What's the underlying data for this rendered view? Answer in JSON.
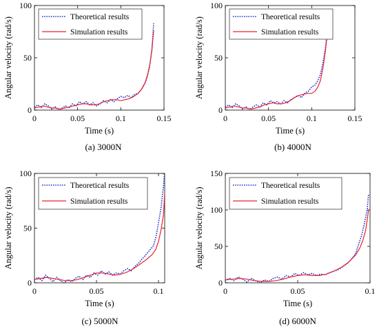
{
  "chart_data": [
    {
      "type": "line",
      "caption": "(a) 3000N",
      "xlabel": "Time (s)",
      "ylabel": "Angular velocity (rad/s)",
      "xlim": [
        0,
        0.15
      ],
      "ylim": [
        0,
        100
      ],
      "xticks": [
        {
          "v": 0,
          "label": "0"
        },
        {
          "v": 0.05,
          "label": "0.05"
        },
        {
          "v": 0.1,
          "label": "0.1"
        },
        {
          "v": 0.15,
          "label": "0.15"
        }
      ],
      "yticks": [
        {
          "v": 0,
          "label": "0"
        },
        {
          "v": 50,
          "label": "50"
        },
        {
          "v": 100,
          "label": "100"
        }
      ],
      "legend_position": "top-left",
      "series": [
        {
          "name": "Theoretical results",
          "color": "#1f2fd0",
          "style": "dotted",
          "x": [
            0,
            0.004,
            0.008,
            0.012,
            0.016,
            0.02,
            0.024,
            0.028,
            0.032,
            0.036,
            0.04,
            0.044,
            0.048,
            0.052,
            0.056,
            0.06,
            0.064,
            0.068,
            0.072,
            0.076,
            0.08,
            0.084,
            0.088,
            0.092,
            0.096,
            0.1,
            0.104,
            0.108,
            0.112,
            0.116,
            0.12,
            0.124,
            0.127,
            0.13,
            0.133,
            0.136,
            0.138
          ],
          "y": [
            3,
            5,
            2,
            6,
            4,
            1,
            3,
            0,
            2,
            4,
            2,
            6,
            4,
            8,
            6,
            8,
            5,
            7,
            4,
            6,
            9,
            7,
            10,
            8,
            11,
            13,
            12,
            14,
            12,
            15,
            16,
            20,
            24,
            30,
            40,
            58,
            83
          ]
        },
        {
          "name": "Simulation results",
          "color": "#e8222a",
          "style": "solid",
          "x": [
            0,
            0.005,
            0.01,
            0.015,
            0.02,
            0.025,
            0.03,
            0.035,
            0.04,
            0.045,
            0.05,
            0.055,
            0.06,
            0.065,
            0.07,
            0.075,
            0.08,
            0.085,
            0.09,
            0.095,
            0.1,
            0.105,
            0.11,
            0.115,
            0.12,
            0.124,
            0.128,
            0.131,
            0.134,
            0.136,
            0.138
          ],
          "y": [
            2,
            3,
            4,
            3,
            2,
            2,
            1,
            2,
            3,
            4,
            5,
            6,
            6,
            5,
            5,
            6,
            8,
            9,
            10,
            10,
            9,
            10,
            11,
            13,
            16,
            20,
            26,
            34,
            45,
            58,
            76
          ]
        }
      ]
    },
    {
      "type": "line",
      "caption": "(b) 4000N",
      "xlabel": "Time (s)",
      "ylabel": "Angular velocity (rad/s)",
      "xlim": [
        0,
        0.15
      ],
      "ylim": [
        0,
        100
      ],
      "xticks": [
        {
          "v": 0,
          "label": "0"
        },
        {
          "v": 0.05,
          "label": "0.05"
        },
        {
          "v": 0.1,
          "label": "0.1"
        },
        {
          "v": 0.15,
          "label": "0.15"
        }
      ],
      "yticks": [
        {
          "v": 0,
          "label": "0"
        },
        {
          "v": 50,
          "label": "50"
        },
        {
          "v": 100,
          "label": "100"
        }
      ],
      "legend_position": "top-left",
      "series": [
        {
          "name": "Theoretical results",
          "color": "#1f2fd0",
          "style": "dotted",
          "x": [
            0,
            0.004,
            0.008,
            0.012,
            0.016,
            0.02,
            0.024,
            0.028,
            0.032,
            0.036,
            0.04,
            0.044,
            0.048,
            0.052,
            0.056,
            0.06,
            0.064,
            0.068,
            0.072,
            0.076,
            0.08,
            0.084,
            0.088,
            0.092,
            0.096,
            0.1,
            0.104,
            0.107,
            0.11,
            0.113,
            0.116,
            0.118,
            0.12
          ],
          "y": [
            3,
            5,
            2,
            6,
            4,
            1,
            3,
            0,
            3,
            5,
            3,
            7,
            5,
            9,
            7,
            8,
            6,
            9,
            7,
            10,
            12,
            14,
            12,
            16,
            18,
            22,
            24,
            28,
            34,
            45,
            60,
            75,
            88
          ]
        },
        {
          "name": "Simulation results",
          "color": "#e8222a",
          "style": "solid",
          "x": [
            0,
            0.005,
            0.01,
            0.015,
            0.02,
            0.025,
            0.03,
            0.035,
            0.04,
            0.045,
            0.05,
            0.055,
            0.06,
            0.065,
            0.07,
            0.075,
            0.08,
            0.085,
            0.09,
            0.095,
            0.1,
            0.104,
            0.107,
            0.11,
            0.113,
            0.116,
            0.118,
            0.12
          ],
          "y": [
            2,
            3,
            4,
            3,
            2,
            2,
            1,
            2,
            3,
            5,
            6,
            7,
            6,
            6,
            7,
            9,
            12,
            14,
            15,
            16,
            16,
            18,
            22,
            28,
            40,
            57,
            73,
            90
          ]
        }
      ]
    },
    {
      "type": "line",
      "caption": "(c) 5000N",
      "xlabel": "Time (s)",
      "ylabel": "Angular velocity (rad/s)",
      "xlim": [
        0,
        0.105
      ],
      "ylim": [
        0,
        100
      ],
      "xticks": [
        {
          "v": 0,
          "label": "0"
        },
        {
          "v": 0.05,
          "label": "0.05"
        },
        {
          "v": 0.1,
          "label": "0.1"
        }
      ],
      "yticks": [
        {
          "v": 0,
          "label": "0"
        },
        {
          "v": 50,
          "label": "50"
        },
        {
          "v": 100,
          "label": "100"
        }
      ],
      "legend_position": "top-left",
      "series": [
        {
          "name": "Theoretical results",
          "color": "#1f2fd0",
          "style": "dotted",
          "x": [
            0,
            0.003,
            0.006,
            0.009,
            0.012,
            0.015,
            0.018,
            0.021,
            0.024,
            0.027,
            0.03,
            0.033,
            0.036,
            0.039,
            0.042,
            0.045,
            0.048,
            0.051,
            0.054,
            0.057,
            0.06,
            0.063,
            0.066,
            0.069,
            0.072,
            0.075,
            0.078,
            0.081,
            0.084,
            0.087,
            0.09,
            0.093,
            0.096,
            0.098,
            0.1,
            0.102,
            0.104,
            0.105
          ],
          "y": [
            3,
            5,
            2,
            7,
            4,
            1,
            5,
            2,
            0,
            3,
            1,
            4,
            6,
            3,
            7,
            5,
            9,
            7,
            11,
            8,
            10,
            7,
            9,
            8,
            11,
            13,
            11,
            15,
            18,
            22,
            26,
            30,
            34,
            42,
            55,
            68,
            88,
            103
          ]
        },
        {
          "name": "Simulation results",
          "color": "#e8222a",
          "style": "solid",
          "x": [
            0,
            0.005,
            0.01,
            0.015,
            0.02,
            0.025,
            0.03,
            0.035,
            0.04,
            0.045,
            0.05,
            0.055,
            0.06,
            0.065,
            0.07,
            0.075,
            0.08,
            0.085,
            0.09,
            0.095,
            0.098,
            0.1,
            0.102,
            0.104,
            0.105
          ],
          "y": [
            3,
            4,
            5,
            4,
            3,
            2,
            2,
            3,
            5,
            7,
            9,
            9,
            8,
            7,
            8,
            10,
            13,
            17,
            21,
            26,
            31,
            38,
            48,
            62,
            82
          ]
        }
      ]
    },
    {
      "type": "line",
      "caption": "(d) 6000N",
      "xlabel": "Time (s)",
      "ylabel": "Angular velocity (rad/s)",
      "xlim": [
        0,
        0.1
      ],
      "ylim": [
        0,
        150
      ],
      "xticks": [
        {
          "v": 0,
          "label": "0"
        },
        {
          "v": 0.05,
          "label": "0.05"
        },
        {
          "v": 0.1,
          "label": "0.1"
        }
      ],
      "yticks": [
        {
          "v": 0,
          "label": "0"
        },
        {
          "v": 50,
          "label": "50"
        },
        {
          "v": 100,
          "label": "100"
        },
        {
          "v": 150,
          "label": "150"
        }
      ],
      "legend_position": "top-left",
      "series": [
        {
          "name": "Theoretical results",
          "color": "#1f2fd0",
          "style": "dotted",
          "x": [
            0,
            0.003,
            0.006,
            0.009,
            0.012,
            0.015,
            0.018,
            0.021,
            0.024,
            0.027,
            0.03,
            0.033,
            0.036,
            0.039,
            0.042,
            0.045,
            0.048,
            0.051,
            0.054,
            0.057,
            0.06,
            0.063,
            0.066,
            0.069,
            0.072,
            0.075,
            0.078,
            0.081,
            0.084,
            0.087,
            0.09,
            0.092,
            0.094,
            0.096,
            0.098,
            0.099
          ],
          "y": [
            4,
            6,
            3,
            8,
            5,
            1,
            6,
            3,
            0,
            4,
            2,
            6,
            8,
            5,
            10,
            8,
            13,
            10,
            14,
            11,
            13,
            10,
            12,
            11,
            14,
            16,
            18,
            22,
            26,
            32,
            40,
            52,
            64,
            80,
            100,
            122
          ]
        },
        {
          "name": "Simulation results",
          "color": "#e8222a",
          "style": "solid",
          "x": [
            0,
            0.005,
            0.01,
            0.015,
            0.02,
            0.025,
            0.03,
            0.035,
            0.04,
            0.045,
            0.05,
            0.055,
            0.06,
            0.065,
            0.07,
            0.075,
            0.08,
            0.085,
            0.09,
            0.093,
            0.095,
            0.097,
            0.099
          ],
          "y": [
            4,
            5,
            6,
            5,
            3,
            2,
            2,
            3,
            5,
            8,
            10,
            11,
            10,
            10,
            12,
            16,
            21,
            28,
            38,
            48,
            58,
            72,
            100
          ]
        }
      ]
    }
  ]
}
